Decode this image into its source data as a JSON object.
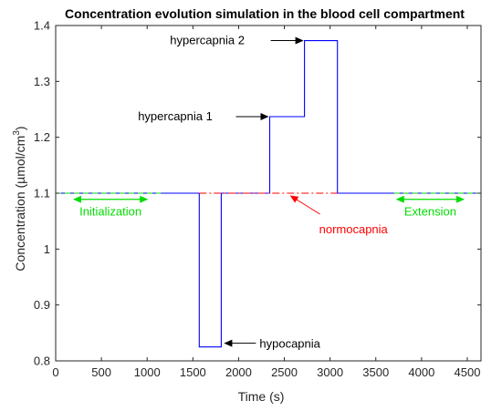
{
  "chart_data": {
    "type": "line",
    "title": "Concentration evolution simulation in the blood cell compartment",
    "xlabel": "Time (s)",
    "ylabel_main": "Concentration (µmol/cm",
    "ylabel_sup": "3",
    "ylabel_close": ")",
    "xlim": [
      0,
      4650
    ],
    "ylim": [
      0.8,
      1.4
    ],
    "xticks": [
      0,
      500,
      1000,
      1500,
      2000,
      2500,
      3000,
      3500,
      4000,
      4500
    ],
    "yticks": [
      0.8,
      0.9,
      1.0,
      1.1,
      1.2,
      1.3,
      1.4
    ],
    "ytick_labels": [
      "0.8",
      "0.9",
      "1",
      "1.1",
      "1.2",
      "1.3",
      "1.4"
    ],
    "grid": false,
    "series": [
      {
        "color": "#0000ff",
        "style": "solid",
        "x": [
          0,
          1570,
          1570,
          1810,
          1810,
          2340,
          2340,
          2720,
          2720,
          3080,
          3080,
          4650
        ],
        "y": [
          1.1,
          1.1,
          0.825,
          0.825,
          1.1,
          1.1,
          1.237,
          1.237,
          1.373,
          1.373,
          1.1,
          1.1
        ]
      },
      {
        "color": "#ff0000",
        "style": "dashdot",
        "x": [
          1570,
          3080
        ],
        "y": [
          1.1,
          1.1
        ]
      },
      {
        "color": "#00dd00",
        "style": "dashed",
        "x": [
          0,
          1150
        ],
        "y": [
          1.1,
          1.1
        ]
      },
      {
        "color": "#00dd00",
        "style": "dashed",
        "x": [
          3700,
          4650
        ],
        "y": [
          1.1,
          1.1
        ]
      }
    ],
    "annotations": [
      {
        "text": "hypercapnia 2",
        "color": "#000000",
        "arrow": "right",
        "arrow_to": [
          2730,
          1.373
        ]
      },
      {
        "text": "hypercapnia 1",
        "color": "#000000",
        "arrow": "right",
        "arrow_to": [
          2350,
          1.237
        ]
      },
      {
        "text": "hypocapnia",
        "color": "#000000",
        "arrow": "left",
        "arrow_to": [
          1830,
          0.825
        ]
      },
      {
        "text": "normocapnia",
        "color": "#ff0000",
        "arrow": "up-left",
        "arrow_to": [
          2540,
          1.1
        ]
      },
      {
        "text": "Initialization",
        "color": "#00dd00",
        "arrow": "double",
        "arrow_span": [
          200,
          1000
        ],
        "arrow_y": 1.089
      },
      {
        "text": "Extension",
        "color": "#00dd00",
        "arrow": "double",
        "arrow_span": [
          3730,
          4460
        ],
        "arrow_y": 1.089
      }
    ]
  }
}
